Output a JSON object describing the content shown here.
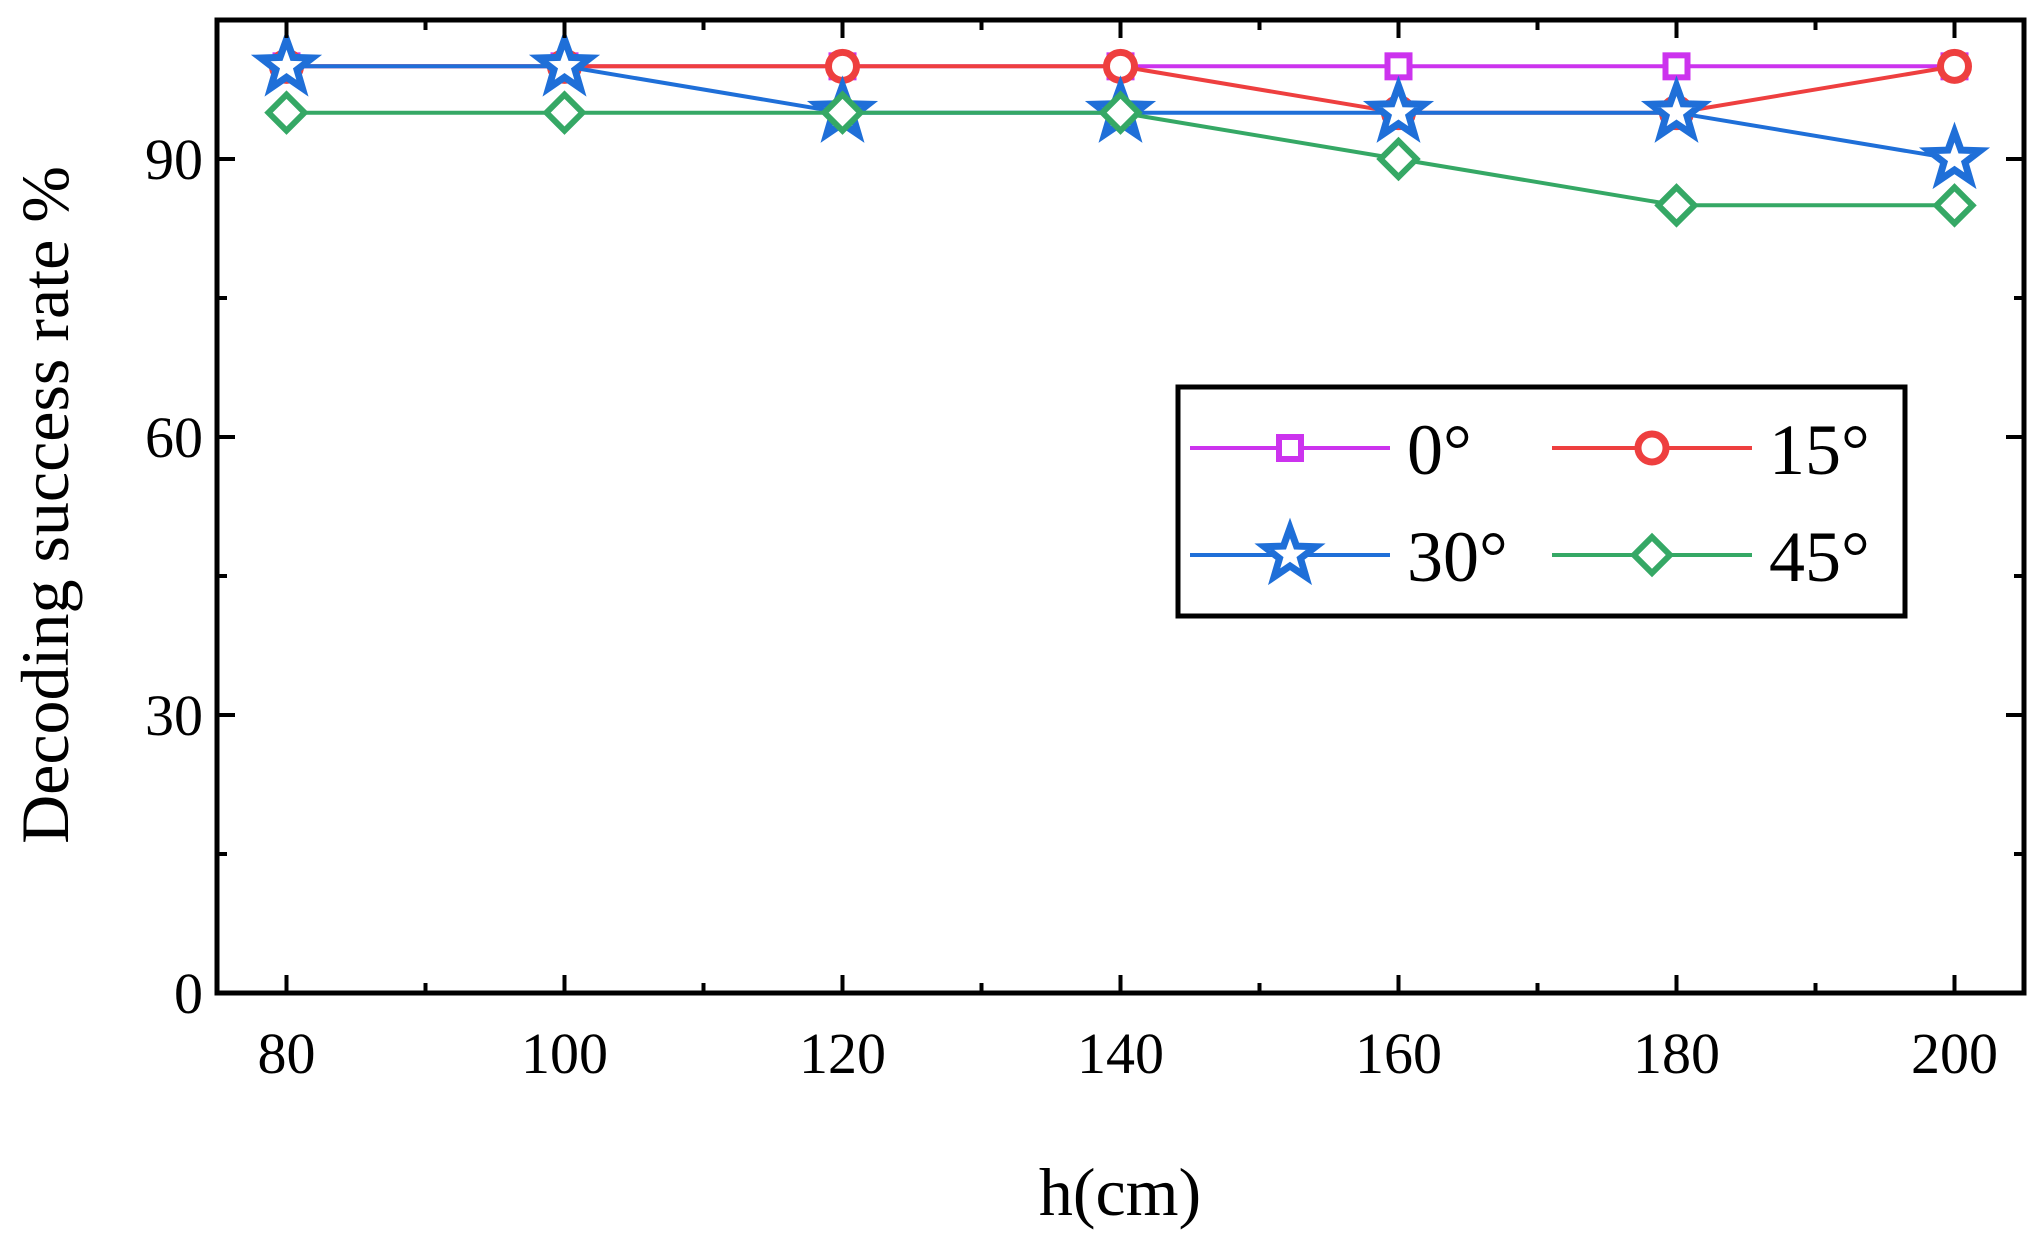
{
  "chart_data": {
    "type": "line",
    "title": "",
    "xlabel": "h(cm)",
    "ylabel": "Decoding success rate %",
    "x": [
      80,
      100,
      120,
      140,
      160,
      180,
      200
    ],
    "xlim": [
      75,
      205
    ],
    "ylim": [
      0,
      105
    ],
    "xticks": [
      80,
      100,
      120,
      140,
      160,
      180,
      200
    ],
    "yticks": [
      0,
      30,
      60,
      90
    ],
    "legend_position": "center-right",
    "grid": false,
    "series": [
      {
        "name": "0°",
        "marker": "square",
        "color": "#cc33ee",
        "values": [
          100,
          100,
          100,
          100,
          100,
          100,
          100
        ]
      },
      {
        "name": "15°",
        "marker": "circle",
        "color": "#ee3f3f",
        "values": [
          100,
          100,
          100,
          100,
          95,
          95,
          100
        ]
      },
      {
        "name": "30°",
        "marker": "star",
        "color": "#1f6fd8",
        "values": [
          100,
          100,
          95,
          95,
          95,
          95,
          90
        ]
      },
      {
        "name": "45°",
        "marker": "diamond",
        "color": "#35a865",
        "values": [
          95,
          95,
          95,
          95,
          90,
          85,
          85
        ]
      }
    ]
  }
}
